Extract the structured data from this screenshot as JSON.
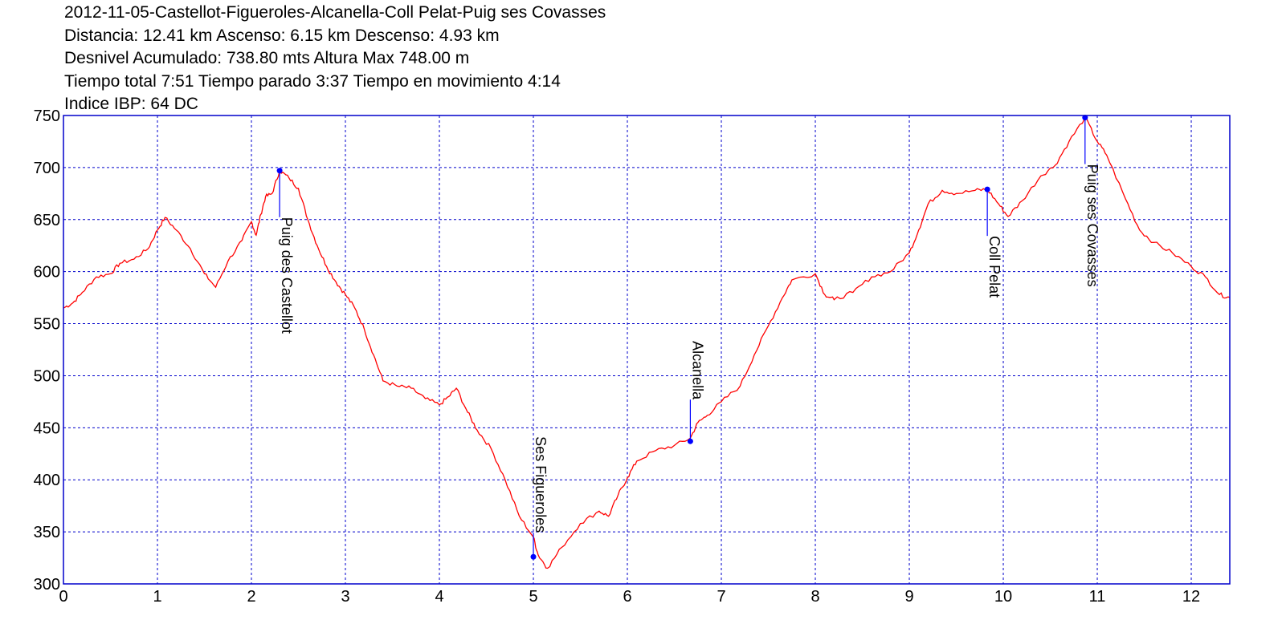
{
  "header": {
    "line1": "2012-11-05-Castellot-Figueroles-Alcanella-Coll Pelat-Puig ses Covasses",
    "line2": "Distancia: 12.41 km Ascenso: 6.15 km Descenso: 4.93 km",
    "line3": "Desnivel Acumulado: 738.80 mts  Altura Max 748.00 m",
    "line4": "Tiempo total 7:51 Tiempo parado 3:37 Tiempo en movimiento 4:14",
    "line5": "Indice IBP: 64 DC"
  },
  "colors": {
    "profile_line": "#ff0000",
    "frame": "#0000cc",
    "grid": "#0000cc",
    "waypoint_marker": "#0000ff"
  },
  "chart_data": {
    "type": "line",
    "title": "2012-11-05-Castellot-Figueroles-Alcanella-Coll Pelat-Puig ses Covasses",
    "xlabel": "",
    "ylabel": "",
    "xlim": [
      0,
      12.41
    ],
    "ylim": [
      300,
      750
    ],
    "x_ticks": [
      0,
      1,
      2,
      3,
      4,
      5,
      6,
      7,
      8,
      9,
      10,
      11,
      12
    ],
    "y_ticks": [
      300,
      350,
      400,
      450,
      500,
      550,
      600,
      650,
      700,
      750
    ],
    "grid": true,
    "series": [
      {
        "points": [
          [
            0.0,
            565
          ],
          [
            0.1,
            570
          ],
          [
            0.2,
            580
          ],
          [
            0.35,
            595
          ],
          [
            0.5,
            598
          ],
          [
            0.6,
            608
          ],
          [
            0.75,
            612
          ],
          [
            0.9,
            622
          ],
          [
            1.0,
            640
          ],
          [
            1.08,
            652
          ],
          [
            1.2,
            640
          ],
          [
            1.35,
            622
          ],
          [
            1.5,
            598
          ],
          [
            1.62,
            585
          ],
          [
            1.75,
            610
          ],
          [
            1.9,
            630
          ],
          [
            2.0,
            648
          ],
          [
            2.05,
            635
          ],
          [
            2.1,
            655
          ],
          [
            2.15,
            672
          ],
          [
            2.22,
            675
          ],
          [
            2.3,
            697
          ],
          [
            2.4,
            690
          ],
          [
            2.5,
            680
          ],
          [
            2.6,
            650
          ],
          [
            2.7,
            625
          ],
          [
            2.8,
            605
          ],
          [
            2.9,
            590
          ],
          [
            3.0,
            578
          ],
          [
            3.1,
            565
          ],
          [
            3.2,
            545
          ],
          [
            3.3,
            520
          ],
          [
            3.4,
            495
          ],
          [
            3.55,
            490
          ],
          [
            3.7,
            488
          ],
          [
            3.85,
            478
          ],
          [
            4.0,
            472
          ],
          [
            4.1,
            480
          ],
          [
            4.18,
            488
          ],
          [
            4.3,
            465
          ],
          [
            4.4,
            448
          ],
          [
            4.55,
            430
          ],
          [
            4.7,
            400
          ],
          [
            4.85,
            365
          ],
          [
            5.0,
            345
          ],
          [
            5.05,
            328
          ],
          [
            5.15,
            315
          ],
          [
            5.3,
            335
          ],
          [
            5.5,
            358
          ],
          [
            5.7,
            370
          ],
          [
            5.8,
            365
          ],
          [
            5.9,
            385
          ],
          [
            6.0,
            402
          ],
          [
            6.1,
            418
          ],
          [
            6.3,
            428
          ],
          [
            6.5,
            433
          ],
          [
            6.67,
            440
          ],
          [
            6.75,
            455
          ],
          [
            6.85,
            462
          ],
          [
            7.0,
            475
          ],
          [
            7.2,
            490
          ],
          [
            7.35,
            520
          ],
          [
            7.5,
            548
          ],
          [
            7.65,
            575
          ],
          [
            7.75,
            592
          ],
          [
            8.0,
            598
          ],
          [
            8.1,
            578
          ],
          [
            8.2,
            573
          ],
          [
            8.4,
            580
          ],
          [
            8.6,
            595
          ],
          [
            8.8,
            600
          ],
          [
            9.0,
            618
          ],
          [
            9.1,
            640
          ],
          [
            9.2,
            665
          ],
          [
            9.35,
            678
          ],
          [
            9.5,
            675
          ],
          [
            9.7,
            678
          ],
          [
            9.83,
            679
          ],
          [
            9.95,
            665
          ],
          [
            10.05,
            653
          ],
          [
            10.2,
            668
          ],
          [
            10.4,
            692
          ],
          [
            10.55,
            702
          ],
          [
            10.7,
            725
          ],
          [
            10.87,
            748
          ],
          [
            11.0,
            725
          ],
          [
            11.1,
            712
          ],
          [
            11.3,
            670
          ],
          [
            11.45,
            640
          ],
          [
            11.6,
            628
          ],
          [
            11.8,
            618
          ],
          [
            12.0,
            605
          ],
          [
            12.15,
            595
          ],
          [
            12.3,
            578
          ],
          [
            12.41,
            575
          ]
        ]
      }
    ],
    "waypoints": [
      {
        "name": "Puig des Castellot",
        "x": 2.3,
        "y": 697
      },
      {
        "name": "Ses Figueroles",
        "x": 5.0,
        "y": 326
      },
      {
        "name": "Alcanella",
        "x": 6.67,
        "y": 437
      },
      {
        "name": "Coll Pelat",
        "x": 9.83,
        "y": 679
      },
      {
        "name": "Puig ses Covasses",
        "x": 10.87,
        "y": 748
      }
    ]
  }
}
